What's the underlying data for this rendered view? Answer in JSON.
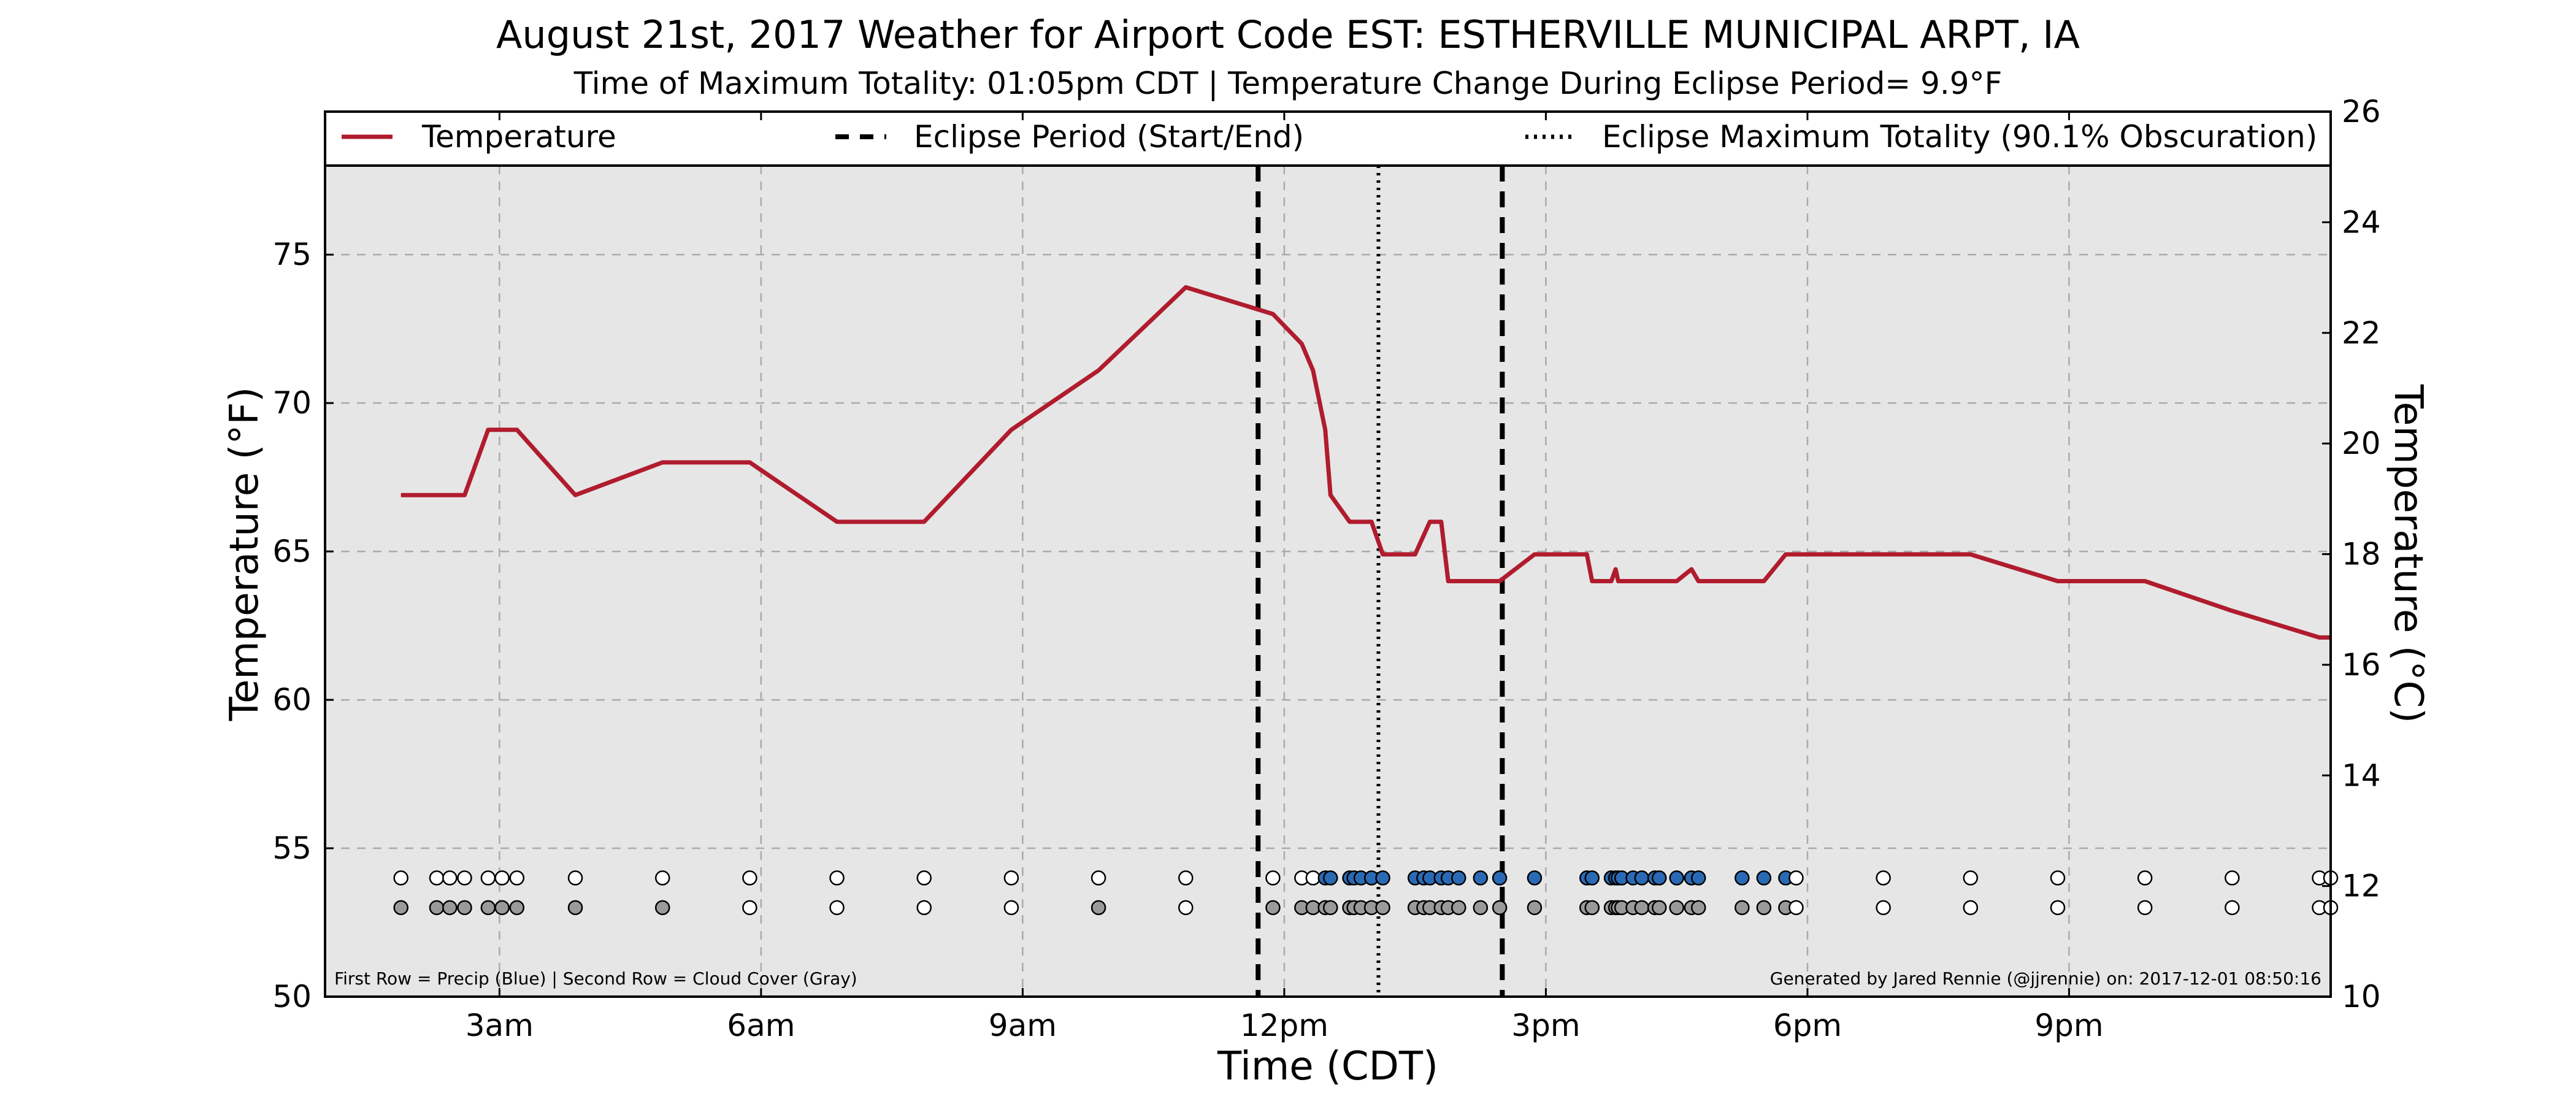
{
  "chart_data": {
    "type": "line",
    "title": "August 21st, 2017 Weather for Airport Code EST: ESTHERVILLE MUNICIPAL ARPT, IA",
    "subtitle": "Time of Maximum Totality: 01:05pm CDT | Temperature Change During Eclipse Period= 9.9°F",
    "xlabel": "Time (CDT)",
    "ylabel": "Temperature (°F)",
    "ylabel_right": "Temperature (°C)",
    "xlim": [
      1.0,
      24.0
    ],
    "ylim": [
      50,
      78
    ],
    "ylim_right": [
      10,
      26
    ],
    "x_unit": "hour of day (CDT)",
    "x_ticks": [
      {
        "x": 3,
        "label": "3am"
      },
      {
        "x": 6,
        "label": "6am"
      },
      {
        "x": 9,
        "label": "9am"
      },
      {
        "x": 12,
        "label": "12pm"
      },
      {
        "x": 15,
        "label": "3pm"
      },
      {
        "x": 18,
        "label": "6pm"
      },
      {
        "x": 21,
        "label": "9pm"
      }
    ],
    "y_ticks": [
      50,
      55,
      60,
      65,
      70,
      75
    ],
    "y_ticks_right": [
      10,
      12,
      14,
      16,
      18,
      20,
      22,
      24,
      26
    ],
    "grid": true,
    "legend": {
      "placement": "top",
      "entries": [
        {
          "label": "Temperature",
          "style": "solid",
          "color": "#b01c2e"
        },
        {
          "label": "Eclipse Period (Start/End)",
          "style": "dashed",
          "color": "#000000"
        },
        {
          "label": "Eclipse Maximum Totality (90.1% Obscuration)",
          "style": "dotted",
          "color": "#000000"
        }
      ]
    },
    "annotations": {
      "bottom_left": "First Row = Precip (Blue) | Second Row = Cloud Cover (Gray)",
      "bottom_right": "Generated by Jared Rennie (@jjrennie) on: 2017-12-01 08:50:16"
    },
    "eclipse": {
      "start": 11.7,
      "max": 13.08,
      "end": 14.5
    },
    "colors": {
      "temperature": "#b01c2e",
      "plot_background": "#e6e6e6",
      "precip": "#2a6ab5",
      "cloud": "#9a9a9a",
      "empty": "#ffffff",
      "grid": "#aaaaaa"
    },
    "series": [
      {
        "name": "Temperature",
        "x": [
          1.87,
          2.6,
          2.87,
          3.2,
          3.87,
          4.87,
          5.87,
          6.87,
          7.87,
          8.87,
          9.87,
          10.87,
          11.87,
          12.2,
          12.33,
          12.47,
          12.53,
          12.75,
          12.8,
          12.88,
          13.0,
          13.13,
          13.5,
          13.67,
          13.8,
          13.88,
          14.0,
          14.47,
          14.87,
          15.0,
          15.47,
          15.53,
          15.75,
          15.8,
          15.83,
          15.87,
          16.0,
          16.5,
          16.67,
          16.75,
          16.87,
          17.0,
          17.5,
          17.75,
          17.87,
          18.87,
          19.87,
          20.87,
          21.87,
          22.87,
          23.87,
          24.0
        ],
        "values": [
          66.9,
          66.9,
          69.1,
          69.1,
          66.9,
          68.0,
          68.0,
          66.0,
          66.0,
          69.1,
          71.1,
          73.9,
          73.0,
          72.0,
          71.1,
          69.1,
          66.9,
          66.0,
          66.0,
          66.0,
          66.0,
          64.9,
          64.9,
          66.0,
          66.0,
          64.0,
          64.0,
          64.0,
          64.9,
          64.9,
          64.9,
          64.0,
          64.0,
          64.4,
          64.0,
          64.0,
          64.0,
          64.0,
          64.4,
          64.0,
          64.0,
          64.0,
          64.0,
          64.9,
          64.9,
          64.9,
          64.9,
          64.0,
          64.0,
          63.0,
          62.1,
          62.1
        ]
      }
    ],
    "observations": {
      "times": [
        1.87,
        2.28,
        2.43,
        2.6,
        2.87,
        3.03,
        3.2,
        3.87,
        4.87,
        5.87,
        6.87,
        7.87,
        8.87,
        9.87,
        10.87,
        11.87,
        12.2,
        12.33,
        12.47,
        12.53,
        12.75,
        12.8,
        12.88,
        13.0,
        13.13,
        13.5,
        13.6,
        13.67,
        13.8,
        13.88,
        14.0,
        14.25,
        14.47,
        14.87,
        15.47,
        15.53,
        15.75,
        15.8,
        15.83,
        15.87,
        16.0,
        16.1,
        16.25,
        16.3,
        16.5,
        16.67,
        16.75,
        17.25,
        17.5,
        17.75,
        17.87,
        18.87,
        19.87,
        20.87,
        21.87,
        22.87,
        23.87,
        24.0
      ],
      "precip": [
        0,
        0,
        0,
        0,
        0,
        0,
        0,
        0,
        0,
        0,
        0,
        0,
        0,
        0,
        0,
        0,
        0,
        0,
        1,
        1,
        1,
        1,
        1,
        1,
        1,
        1,
        1,
        1,
        1,
        1,
        1,
        1,
        1,
        1,
        1,
        1,
        1,
        1,
        1,
        1,
        1,
        1,
        1,
        1,
        1,
        1,
        1,
        1,
        1,
        1,
        0,
        0,
        0,
        0,
        0,
        0,
        0,
        0
      ],
      "cloud": [
        1,
        1,
        1,
        1,
        1,
        1,
        1,
        1,
        1,
        0,
        0,
        0,
        0,
        1,
        0,
        1,
        1,
        1,
        1,
        1,
        1,
        1,
        1,
        1,
        1,
        1,
        1,
        1,
        1,
        1,
        1,
        1,
        1,
        1,
        1,
        1,
        1,
        1,
        1,
        1,
        1,
        1,
        1,
        1,
        1,
        1,
        1,
        1,
        1,
        1,
        0,
        0,
        0,
        0,
        0,
        0,
        0,
        0
      ]
    }
  }
}
